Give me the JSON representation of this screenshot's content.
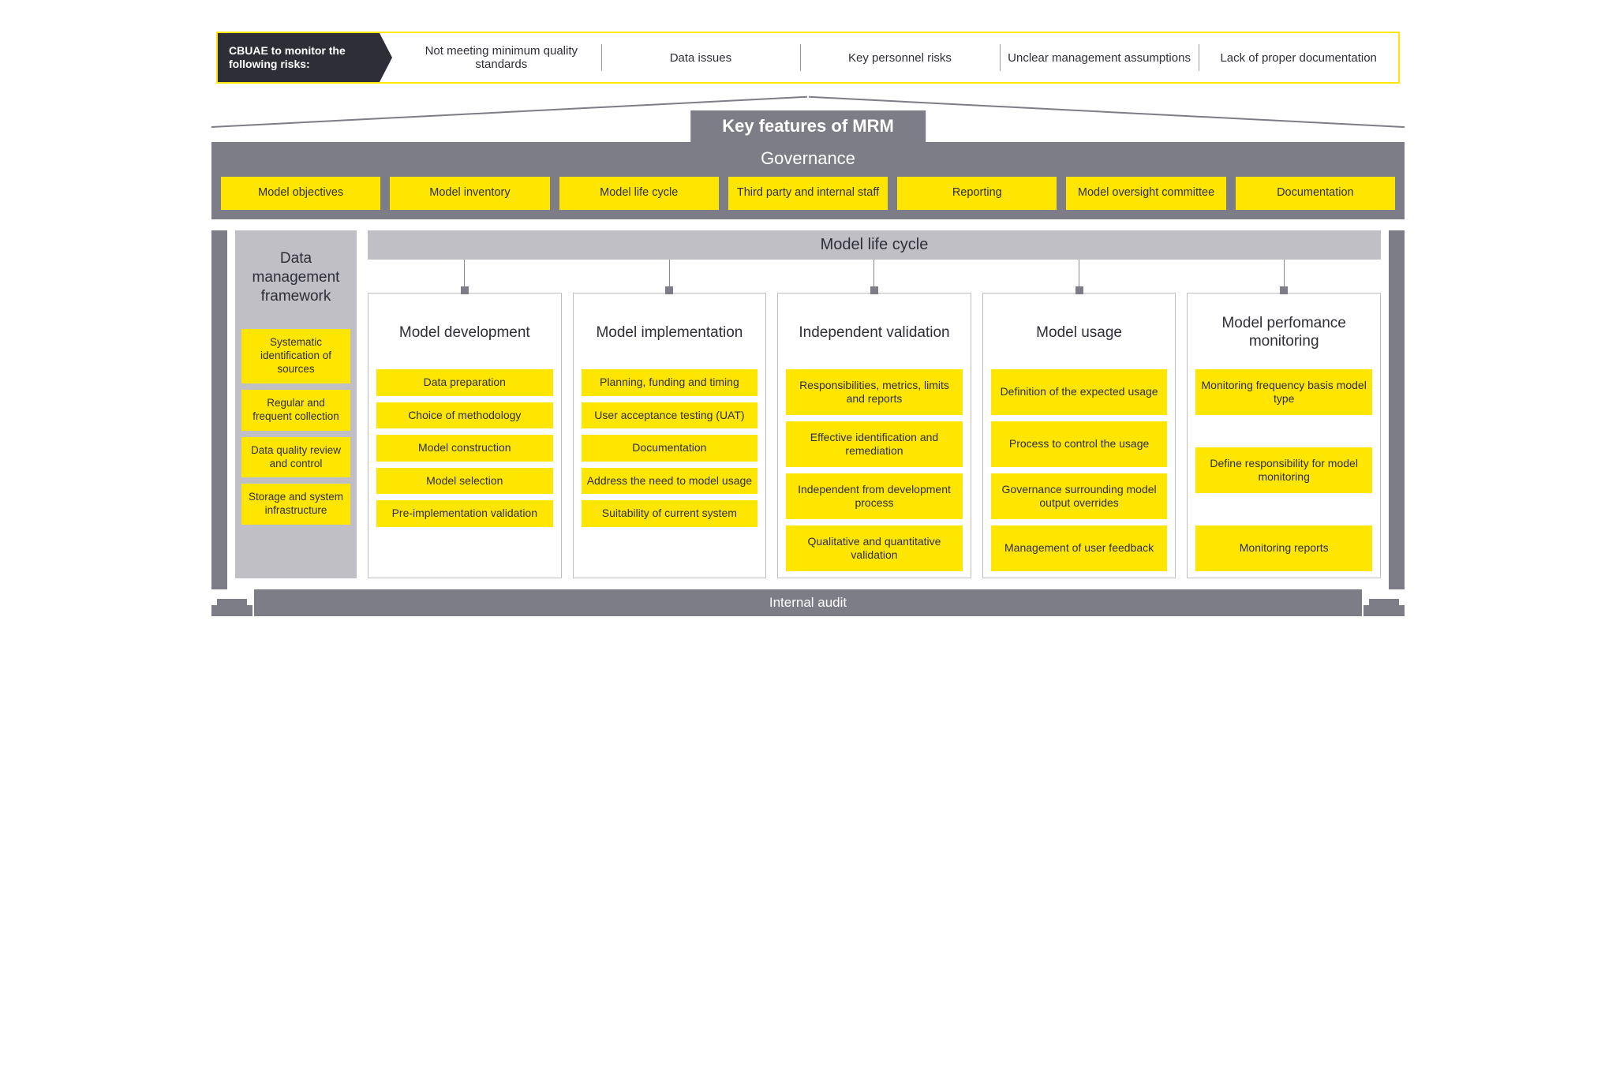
{
  "colors": {
    "accent": "#ffe600",
    "dark": "#2e2e38",
    "mid": "#7d7d87",
    "light": "#bfbfc5",
    "background": "#ffffff"
  },
  "riskBar": {
    "tag": "CBUAE to monitor the following risks:",
    "items": [
      "Not meeting minimum quality standards",
      "Data issues",
      "Key personnel risks",
      "Unclear management assumptions",
      "Lack of proper documentation"
    ]
  },
  "roofTitle": "Key features of MRM",
  "governance": {
    "title": "Governance",
    "items": [
      "Model objectives",
      "Model inventory",
      "Model life cycle",
      "Third party and internal staff",
      "Reporting",
      "Model oversight committee",
      "Documentation"
    ]
  },
  "dmf": {
    "title": "Data management framework",
    "items": [
      "Systematic identification of sources",
      "Regular and frequent collection",
      "Data quality review and control",
      "Storage and system infrastructure"
    ]
  },
  "mlc": {
    "title": "Model life cycle",
    "columns": [
      {
        "title": "Model development",
        "items": [
          "Data preparation",
          "Choice of methodology",
          "Model construction",
          "Model selection",
          "Pre-implementation validation"
        ]
      },
      {
        "title": "Model implementation",
        "items": [
          "Planning, funding and timing",
          "User acceptance testing (UAT)",
          "Documentation",
          "Address the need to model usage",
          "Suitability of current system"
        ]
      },
      {
        "title": "Independent validation",
        "items": [
          "Responsibilities, metrics, limits and reports",
          "Effective identification and remediation",
          "Independent from development process",
          "Qualitative and quantitative validation"
        ]
      },
      {
        "title": "Model usage",
        "items": [
          "Definition of the expected usage",
          "Process to control the usage",
          "Governance surrounding model output overrides",
          "Management of user feedback"
        ]
      },
      {
        "title": "Model perfomance monitoring",
        "items": [
          "Monitoring frequency basis model type",
          "Define responsibility for model monitoring",
          "Monitoring reports"
        ]
      }
    ]
  },
  "audit": "Internal audit"
}
